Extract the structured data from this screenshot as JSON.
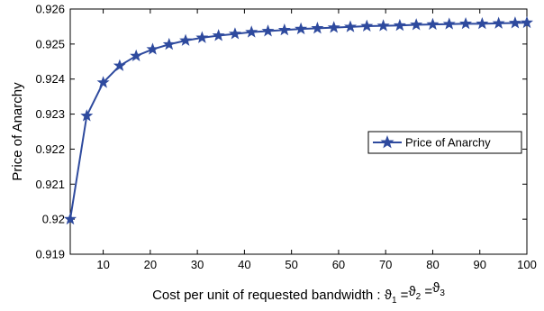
{
  "chart_data": {
    "type": "line",
    "title": "",
    "xlabel_prefix": "Cost per unit of requested bandwidth : ",
    "xlabel_theta": "ϑ",
    "xlabel_subs": [
      "1",
      "2",
      "3"
    ],
    "xlabel_eq": "=",
    "ylabel": "Price of Anarchy",
    "xlim": [
      3,
      100
    ],
    "ylim": [
      0.919,
      0.926
    ],
    "xticks": [
      10,
      20,
      30,
      40,
      50,
      60,
      70,
      80,
      90,
      100
    ],
    "xtick_labels": [
      "10",
      "20",
      "30",
      "40",
      "50",
      "60",
      "70",
      "80",
      "90",
      "100"
    ],
    "yticks": [
      0.919,
      0.92,
      0.921,
      0.922,
      0.923,
      0.924,
      0.925,
      0.926
    ],
    "ytick_labels": [
      "0.919",
      "0.92",
      "0.921",
      "0.922",
      "0.923",
      "0.924",
      "0.925",
      "0.926"
    ],
    "grid": false,
    "legend_position": "middle-right",
    "series": [
      {
        "name": "Price of Anarchy",
        "color": "#2e4a9e",
        "marker": "star",
        "x": [
          3,
          6.5,
          10,
          13.5,
          17,
          20.5,
          24,
          27.5,
          31,
          34.5,
          38,
          41.5,
          45,
          48.5,
          52,
          55.5,
          59,
          62.5,
          66,
          69.5,
          73,
          76.5,
          80,
          83.5,
          87,
          90.5,
          94,
          97.5,
          100
        ],
        "y": [
          0.92,
          0.92295,
          0.9239,
          0.92438,
          0.92466,
          0.92485,
          0.92499,
          0.9251,
          0.92518,
          0.92524,
          0.92529,
          0.92534,
          0.92537,
          0.9254,
          0.92543,
          0.92545,
          0.92547,
          0.92549,
          0.92551,
          0.92552,
          0.92553,
          0.92555,
          0.92556,
          0.92557,
          0.92558,
          0.92558,
          0.92559,
          0.9256,
          0.92561
        ]
      }
    ]
  }
}
